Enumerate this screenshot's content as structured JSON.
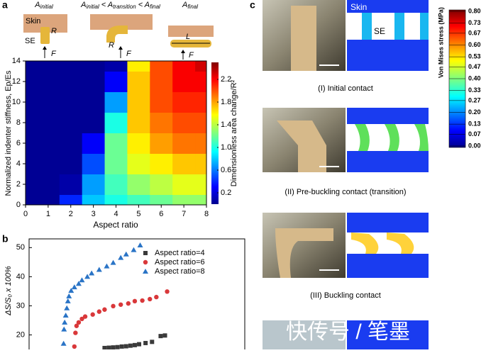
{
  "chart_data": [
    {
      "type": "heatmap",
      "xlabel": "Aspect ratio",
      "ylabel": "Normalized indenter stiffness, Ep/Es",
      "xlim": [
        0,
        8
      ],
      "ylim": [
        0,
        14
      ],
      "xticks": [
        0,
        1,
        2,
        3,
        4,
        5,
        6,
        7,
        8
      ],
      "yticks": [
        0,
        2,
        4,
        6,
        8,
        10,
        12,
        14
      ],
      "x": [
        0,
        1,
        2,
        3,
        4,
        5,
        6,
        7,
        8
      ],
      "y": [
        0,
        2,
        4,
        6,
        8,
        10,
        12,
        14
      ],
      "z": [
        [
          0.05,
          0.05,
          0.4,
          0.8,
          1.0,
          1.1,
          1.2,
          1.3,
          1.3
        ],
        [
          0.05,
          0.05,
          0.1,
          0.7,
          1.1,
          1.3,
          1.4,
          1.5,
          1.5
        ],
        [
          0.05,
          0.05,
          0.05,
          0.5,
          1.2,
          1.5,
          1.6,
          1.7,
          1.7
        ],
        [
          0.05,
          0.05,
          0.05,
          0.3,
          1.2,
          1.6,
          1.8,
          1.9,
          1.9
        ],
        [
          0.05,
          0.05,
          0.05,
          0.05,
          1.0,
          1.7,
          1.9,
          2.0,
          2.0
        ],
        [
          0.05,
          0.05,
          0.05,
          0.05,
          0.7,
          1.7,
          2.0,
          2.1,
          2.1
        ],
        [
          0.05,
          0.05,
          0.05,
          0.05,
          0.3,
          1.7,
          2.0,
          2.2,
          2.2
        ],
        [
          0.05,
          0.05,
          0.05,
          0.05,
          0.1,
          1.6,
          2.0,
          2.2,
          2.3
        ]
      ],
      "colorbar_label": "Dimensionless area change/R²",
      "clim": [
        0,
        2.5
      ],
      "colorbar_ticks": [
        0.2,
        0.6,
        {
          "value": 1,
          "label": "1.0"
        },
        1.4,
        1.8,
        2.2
      ],
      "colormap": "jet"
    },
    {
      "type": "scatter",
      "ylabel": "ΔS/S₀ x 100%",
      "xlim": [
        0,
        10
      ],
      "ylim": [
        15,
        53
      ],
      "yticks": [
        20,
        30,
        40,
        50
      ],
      "series": [
        {
          "name": "Aspect ratio=4",
          "color": "#3a3a3a",
          "marker": "square",
          "x": [
            3.5,
            3.7,
            3.9,
            4.1,
            4.3,
            4.5,
            4.7,
            4.9,
            5.1,
            5.4,
            5.7,
            6.1,
            6.3
          ],
          "values": [
            15.5,
            15.6,
            15.7,
            15.8,
            16.0,
            16.1,
            16.3,
            16.5,
            16.8,
            17.2,
            17.6,
            19.6,
            19.8
          ]
        },
        {
          "name": "Aspect ratio=6",
          "color": "#d9383a",
          "marker": "circle",
          "x": [
            2.1,
            2.15,
            2.2,
            2.3,
            2.45,
            2.6,
            2.95,
            3.25,
            3.5,
            3.9,
            4.25,
            4.6,
            4.9,
            5.25,
            5.6,
            5.9,
            6.4
          ],
          "values": [
            16.0,
            20.7,
            23.1,
            24.3,
            25.5,
            26.3,
            27.0,
            28.0,
            28.7,
            29.9,
            30.4,
            30.8,
            31.6,
            31.8,
            32.3,
            33.0,
            34.9
          ]
        },
        {
          "name": "Aspect ratio=8",
          "color": "#2a74c6",
          "marker": "triangle",
          "x": [
            1.6,
            1.62,
            1.65,
            1.7,
            1.75,
            1.8,
            1.85,
            1.95,
            2.1,
            2.3,
            2.45,
            2.7,
            2.9,
            3.25,
            3.6,
            3.9,
            4.25,
            4.5,
            4.85,
            5.15
          ],
          "values": [
            17.0,
            21.9,
            24.3,
            26.7,
            29.2,
            31.6,
            33.3,
            35.2,
            36.4,
            37.6,
            38.8,
            40.0,
            41.2,
            42.4,
            43.6,
            44.8,
            46.5,
            47.7,
            49.2,
            50.8
          ]
        }
      ]
    }
  ],
  "panel_labels": {
    "a": "a",
    "b": "b",
    "c": "c"
  },
  "schematic": {
    "titles": [
      [
        {
          "text": "A",
          "sub": "initial"
        }
      ],
      [
        {
          "text": "A",
          "sub": "initial"
        },
        {
          "text": " < A",
          "sub": "transition"
        },
        {
          "text": " < A",
          "sub": "final"
        }
      ],
      [
        {
          "text": "A",
          "sub": "final"
        }
      ]
    ],
    "labels": {
      "skin": "Skin",
      "se": "SE",
      "r": "R",
      "f": "F",
      "l": "L"
    }
  },
  "panel_c": {
    "captions": [
      "(I) Initial contact",
      "(II) Pre-buckling contact (transition)",
      "(III) Buckling contact"
    ],
    "fem_labels": {
      "skin": "Skin",
      "se": "SE"
    },
    "stress_colorbar": {
      "label": "Von Mises stress (MPa)",
      "clim": [
        0,
        0.8
      ],
      "ticks": [
        {
          "value": 0.8,
          "label": "0.80"
        },
        0.73,
        0.67,
        {
          "value": 0.6,
          "label": "0.60"
        },
        0.53,
        0.47,
        {
          "value": 0.4,
          "label": "0.40"
        },
        0.33,
        0.27,
        {
          "value": 0.2,
          "label": "0.20"
        },
        0.13,
        0.07,
        {
          "value": 0,
          "label": "0.00"
        }
      ]
    },
    "watermark": "快传号 / 笔墨"
  }
}
